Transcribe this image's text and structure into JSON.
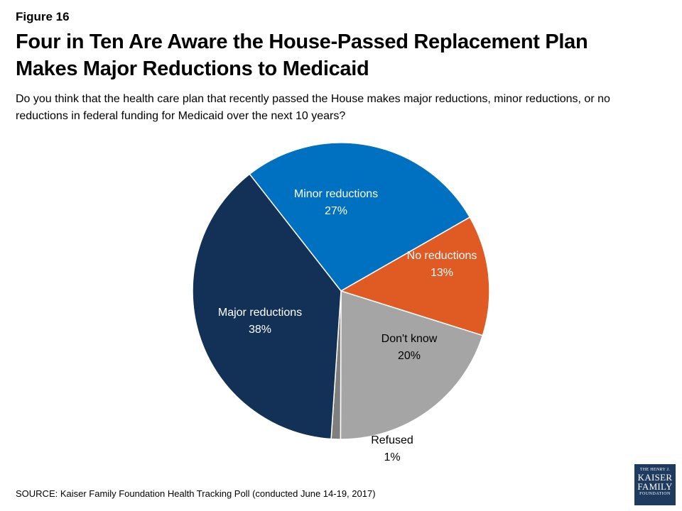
{
  "figure_label": "Figure 16",
  "title": "Four in Ten Are Aware the House-Passed Replacement Plan Makes Major Reductions to Medicaid",
  "subtitle": "Do you think that the health care plan that recently passed the House makes major reductions, minor reductions, or no reductions in federal funding for Medicaid over the next 10 years?",
  "source": "SOURCE: Kaiser Family Foundation Health Tracking Poll (conducted June 14-19, 2017)",
  "logo": {
    "line1": "THE HENRY J.",
    "line2": "KAISER",
    "line3": "FAMILY",
    "line4": "FOUNDATION"
  },
  "chart_data": {
    "type": "pie",
    "title": "",
    "slices": [
      {
        "label": "Minor reductions",
        "value": 27,
        "value_label": "27%",
        "color": "#0070c0",
        "label_color": "#ffffff"
      },
      {
        "label": "No reductions",
        "value": 13,
        "value_label": "13%",
        "color": "#e05a24",
        "label_color": "#ffffff"
      },
      {
        "label": "Don't know",
        "value": 20,
        "value_label": "20%",
        "color": "#a5a5a5",
        "label_color": "#000000"
      },
      {
        "label": "Refused",
        "value": 1,
        "value_label": "1%",
        "color": "#7f7f7f",
        "label_color": "#000000"
      },
      {
        "label": "Major reductions",
        "value": 38,
        "value_label": "38%",
        "color": "#133156",
        "label_color": "#ffffff"
      }
    ]
  }
}
